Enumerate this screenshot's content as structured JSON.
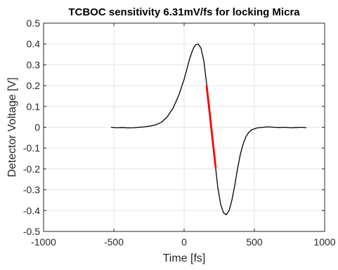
{
  "chart_data": {
    "type": "line",
    "title": "TCBOC sensitivity 6.31mV/fs for locking Micra",
    "xlabel": "Time [fs]",
    "ylabel": "Detector Voltage [V]",
    "xlim": [
      -1000,
      1000
    ],
    "ylim": [
      -0.5,
      0.5
    ],
    "grid": true,
    "x_ticks": [
      -1000,
      -500,
      0,
      500,
      1000
    ],
    "x_tick_labels": [
      "-1000",
      "-500",
      "0",
      "500",
      "1000"
    ],
    "y_ticks": [
      0.5,
      0.4,
      0.3,
      0.2,
      0.1,
      0,
      -0.1,
      -0.2,
      -0.3,
      -0.4,
      -0.5
    ],
    "y_tick_labels": [
      "0.5",
      "0.4",
      "0.3",
      "0.2",
      "0.1",
      "0",
      "-0.1",
      "-0.2",
      "-0.3",
      "-0.4",
      "-0.5"
    ],
    "series": [
      {
        "color": "#000000",
        "x": [
          -520,
          -480,
          -440,
          -400,
          -360,
          -320,
          -280,
          -240,
          -200,
          -160,
          -120,
          -80,
          -40,
          0,
          20,
          40,
          60,
          80,
          100,
          120,
          140,
          160,
          180,
          200,
          220,
          240,
          260,
          280,
          300,
          320,
          340,
          360,
          380,
          400,
          420,
          440,
          460,
          480,
          520,
          560,
          600,
          640,
          680,
          720,
          760,
          800,
          840,
          870
        ],
        "y": [
          0.0,
          -0.002,
          -0.001,
          -0.003,
          -0.002,
          0.0,
          0.002,
          0.006,
          0.012,
          0.025,
          0.05,
          0.09,
          0.15,
          0.23,
          0.28,
          0.33,
          0.37,
          0.395,
          0.4,
          0.38,
          0.32,
          0.21,
          0.1,
          -0.03,
          -0.17,
          -0.29,
          -0.37,
          -0.41,
          -0.42,
          -0.4,
          -0.35,
          -0.28,
          -0.2,
          -0.13,
          -0.08,
          -0.045,
          -0.025,
          -0.012,
          -0.003,
          0.0,
          0.002,
          0.0,
          -0.001,
          0.0,
          -0.002,
          -0.001,
          0.0,
          -0.002
        ]
      },
      {
        "color": "#ff0000",
        "x": [
          160,
          225
        ],
        "y": [
          0.2,
          -0.195
        ]
      }
    ]
  }
}
